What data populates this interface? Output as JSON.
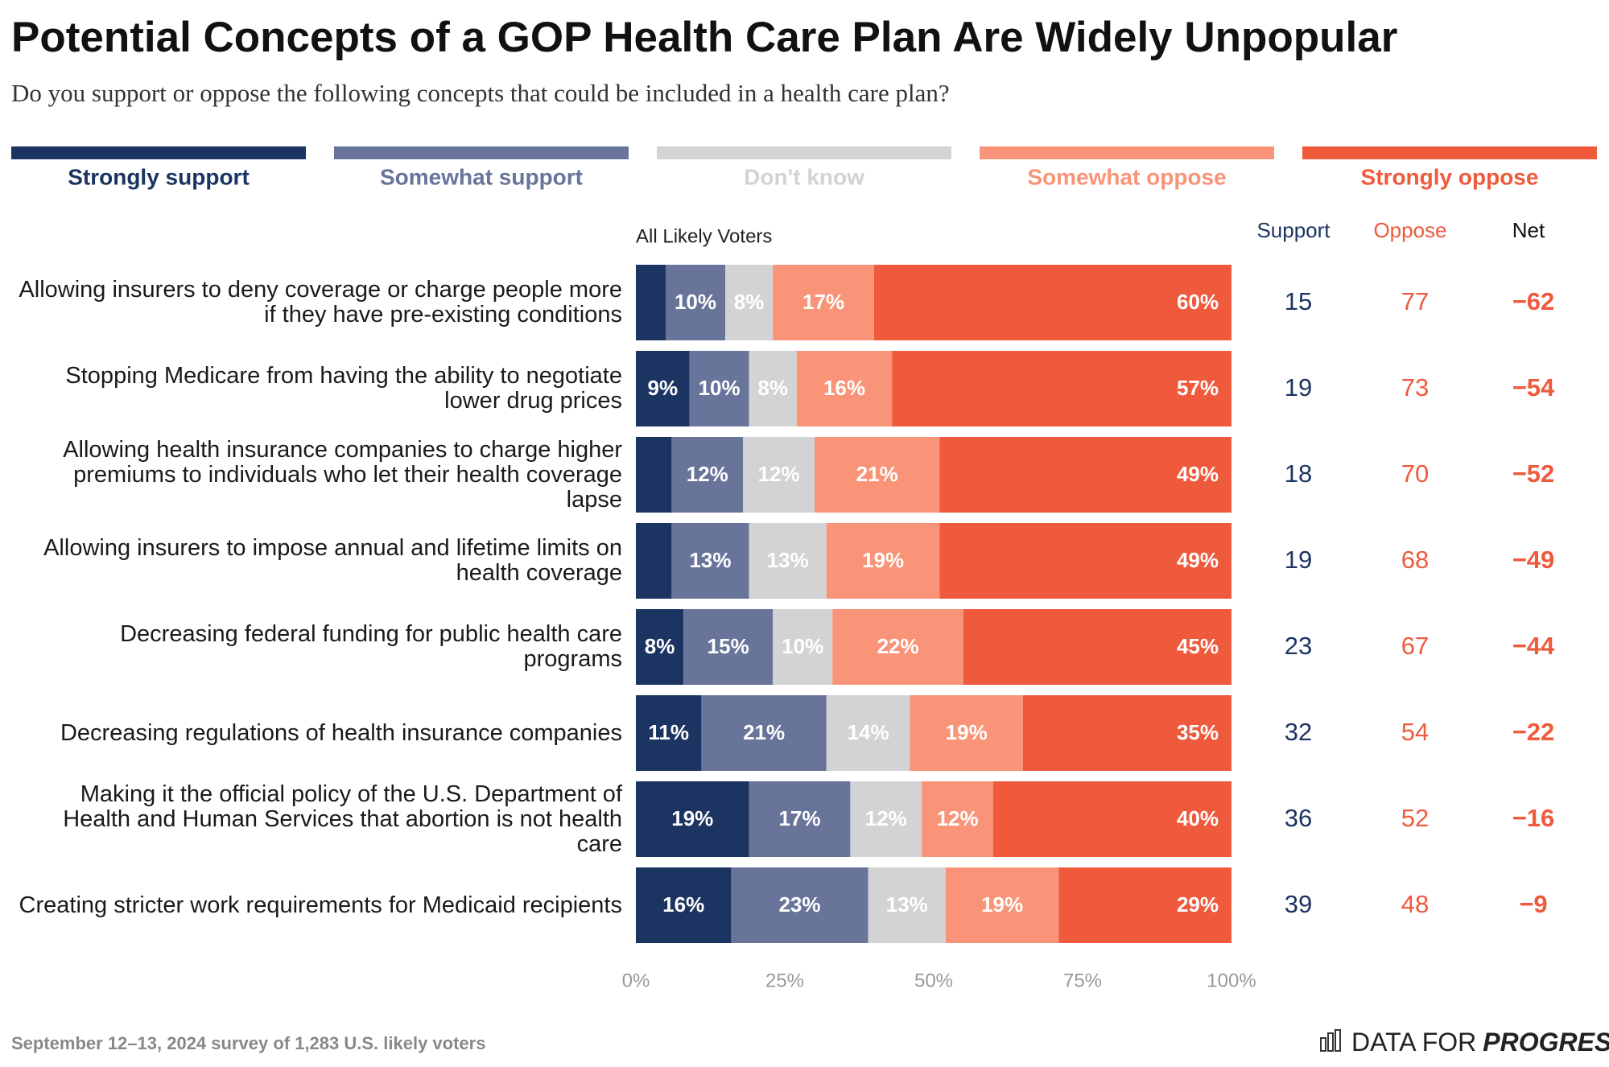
{
  "chart_data": {
    "type": "bar",
    "orientation": "horizontal",
    "stacked": true,
    "title": "Potential Concepts of a GOP Health Care Plan Are Widely Unpopular",
    "subtitle": "Do you support or oppose the following concepts that could be included in a health care plan?",
    "group_label": "All Likely Voters",
    "legend_position": "top",
    "categories": [
      "Allowing insurers to deny coverage or charge people more if they have pre-existing conditions",
      "Stopping Medicare from having the ability to negotiate lower drug prices",
      "Allowing health insurance companies to charge higher premiums to individuals who let their health coverage lapse",
      "Allowing insurers to impose annual and lifetime limits on health coverage",
      "Decreasing federal funding for public health care programs",
      "Decreasing regulations of health insurance companies",
      "Making it the official policy of the U.S. Department of Health and Human Services that abortion is not health care",
      "Creating stricter work requirements for Medicaid recipients"
    ],
    "series": [
      {
        "name": "Strongly support",
        "color": "#1c3461",
        "label_color": "#ffffff",
        "values": [
          5,
          9,
          6,
          6,
          8,
          11,
          19,
          16
        ],
        "value_labels": [
          null,
          "9%",
          null,
          null,
          "8%",
          "11%",
          "19%",
          "16%"
        ]
      },
      {
        "name": "Somewhat support",
        "color": "#68749a",
        "label_color": "#ffffff",
        "values": [
          10,
          10,
          12,
          13,
          15,
          21,
          17,
          23
        ],
        "value_labels": [
          "10%",
          "10%",
          "12%",
          "13%",
          "15%",
          "21%",
          "17%",
          "23%"
        ]
      },
      {
        "name": "Don't know",
        "color": "#d3d3d5",
        "label_color": "#ffffff",
        "values": [
          8,
          8,
          12,
          13,
          10,
          14,
          12,
          13
        ],
        "value_labels": [
          "8%",
          "8%",
          "12%",
          "13%",
          "10%",
          "14%",
          "12%",
          "13%"
        ]
      },
      {
        "name": "Somewhat oppose",
        "color": "#f99478",
        "label_color": "#ffffff",
        "values": [
          17,
          16,
          21,
          19,
          22,
          19,
          12,
          19
        ],
        "value_labels": [
          "17%",
          "16%",
          "21%",
          "19%",
          "22%",
          "19%",
          "12%",
          "19%"
        ]
      },
      {
        "name": "Strongly oppose",
        "color": "#ef593c",
        "label_color": "#ffffff",
        "values": [
          60,
          57,
          49,
          49,
          45,
          35,
          40,
          29
        ],
        "value_labels": [
          "60%",
          "57%",
          "49%",
          "49%",
          "45%",
          "35%",
          "40%",
          "29%"
        ]
      }
    ],
    "xlim": [
      0,
      100
    ],
    "xticks": [
      {
        "value": 0,
        "label": "0%"
      },
      {
        "value": 25,
        "label": "25%"
      },
      {
        "value": 50,
        "label": "50%"
      },
      {
        "value": 75,
        "label": "75%"
      },
      {
        "value": 100,
        "label": "100%"
      }
    ],
    "columns": [
      {
        "name": "Support",
        "color": "#1c3461",
        "header_color": "#1c3461",
        "bold": false,
        "values": [
          15,
          19,
          18,
          19,
          23,
          32,
          36,
          39
        ]
      },
      {
        "name": "Oppose",
        "color": "#ef593c",
        "header_color": "#ef593c",
        "bold": false,
        "values": [
          77,
          73,
          70,
          68,
          67,
          54,
          52,
          48
        ]
      },
      {
        "name": "Net",
        "color": "#ef593c",
        "header_color": "#111111",
        "bold": true,
        "values": [
          -62,
          -54,
          -52,
          -49,
          -44,
          -22,
          -16,
          -9
        ],
        "value_labels": [
          "−62",
          "−54",
          "−52",
          "−49",
          "−44",
          "−22",
          "−16",
          "−9"
        ]
      }
    ],
    "source": "September 12–13, 2024 survey of 1,283 U.S. likely voters",
    "brand": {
      "prefix": "DATA FOR",
      "name": "PROGRESS"
    }
  }
}
